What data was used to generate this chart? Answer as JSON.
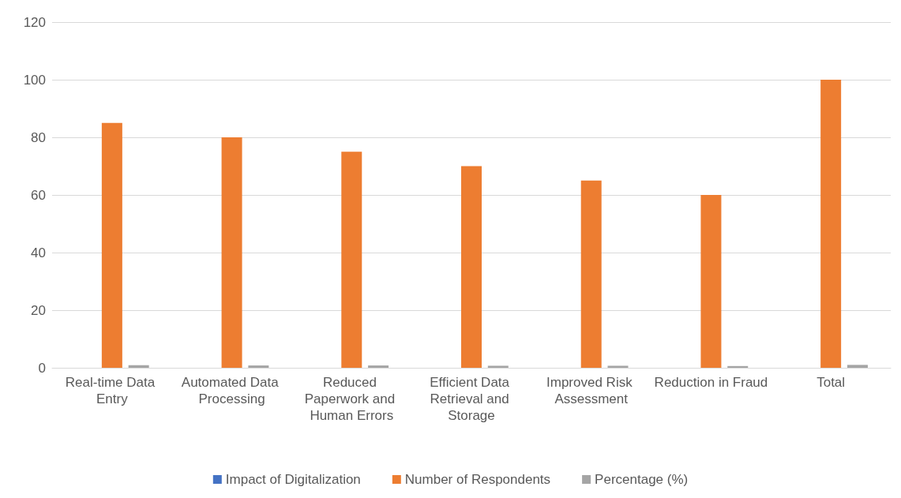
{
  "chart_data": {
    "type": "bar",
    "categories": [
      "Real-time Data Entry",
      "Automated Data Processing",
      "Reduced Paperwork and Human Errors",
      "Efficient Data Retrieval and Storage",
      "Improved Risk Assessment",
      "Reduction in Fraud",
      "Total"
    ],
    "series": [
      {
        "name": "Impact of Digitalization",
        "color": "#4472c4",
        "values": [
          null,
          null,
          null,
          null,
          null,
          null,
          null
        ]
      },
      {
        "name": "Number of Respondents",
        "color": "#ed7d31",
        "values": [
          85,
          80,
          75,
          70,
          65,
          60,
          100
        ]
      },
      {
        "name": "Percentage (%)",
        "color": "#a5a5a5",
        "values": [
          0.9,
          0.8,
          0.8,
          0.7,
          0.7,
          0.6,
          1
        ]
      }
    ],
    "ylim": [
      0,
      120
    ],
    "yticks": [
      0,
      20,
      40,
      60,
      80,
      100,
      120
    ],
    "grid": "y",
    "legend": "bottom"
  }
}
